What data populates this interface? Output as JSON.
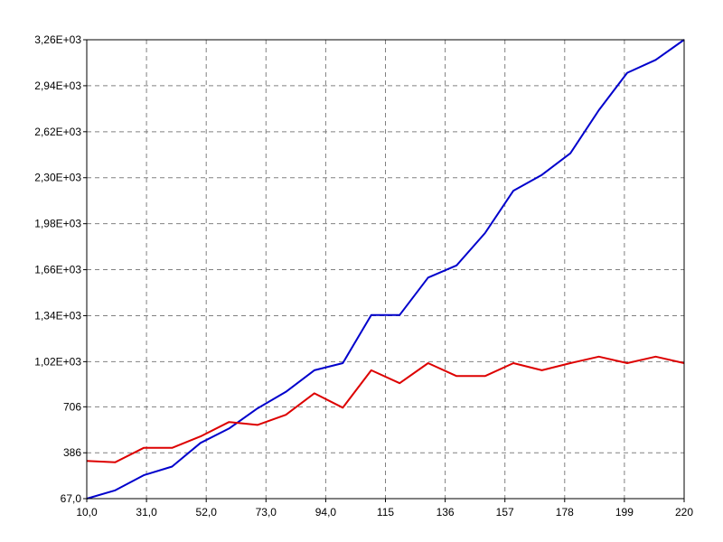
{
  "chart_data": {
    "type": "line",
    "title": "",
    "xlabel": "",
    "ylabel": "",
    "xlim": [
      10.0,
      220
    ],
    "ylim": [
      67.0,
      3260
    ],
    "grid": true,
    "x_ticks": [
      10.0,
      31.0,
      52.0,
      73.0,
      94.0,
      115,
      136,
      157,
      178,
      199,
      220
    ],
    "x_tick_labels": [
      "10,0",
      "31,0",
      "52,0",
      "73,0",
      "94,0",
      "115",
      "136",
      "157",
      "178",
      "199",
      "220"
    ],
    "y_ticks": [
      67.0,
      386,
      706,
      1020,
      1340,
      1660,
      1980,
      2300,
      2620,
      2940,
      3260
    ],
    "y_tick_labels": [
      "67,0",
      "386",
      "706",
      "1,02E+03",
      "1,34E+03",
      "1,66E+03",
      "1,98E+03",
      "2,30E+03",
      "2,62E+03",
      "2,94E+03",
      "3,26E+03"
    ],
    "x": [
      10,
      20,
      30,
      40,
      50,
      60,
      70,
      80,
      90,
      100,
      110,
      120,
      130,
      140,
      150,
      160,
      170,
      180,
      190,
      200,
      210,
      220
    ],
    "series": [
      {
        "color": "#0000cc",
        "values": [
          67,
          125,
          230,
          290,
          455,
          555,
          695,
          810,
          960,
          1010,
          1345,
          1345,
          1605,
          1690,
          1915,
          2210,
          2320,
          2470,
          2770,
          3030,
          3120,
          3260
        ]
      },
      {
        "color": "#dd0000",
        "values": [
          330,
          320,
          420,
          420,
          500,
          600,
          580,
          650,
          800,
          700,
          960,
          870,
          1010,
          920,
          920,
          1010,
          960,
          1010,
          1055,
          1010,
          1055,
          1010
        ]
      }
    ]
  }
}
